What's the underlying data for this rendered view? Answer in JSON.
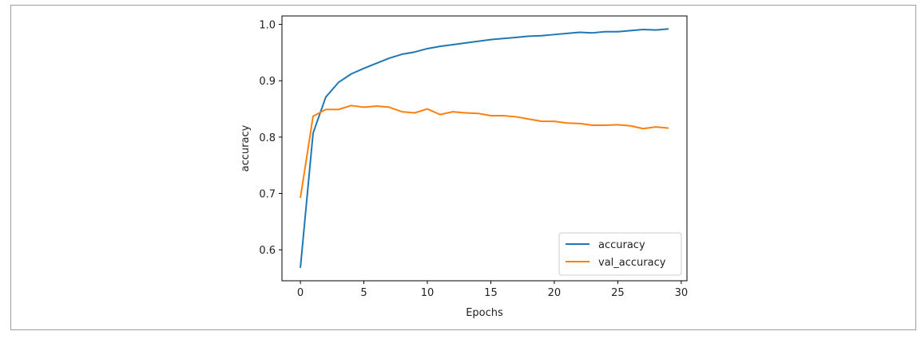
{
  "chart_data": {
    "type": "line",
    "title": "",
    "xlabel": "Epochs",
    "ylabel": "accuracy",
    "xlim": [
      -1.45,
      30.45
    ],
    "ylim": [
      0.545,
      1.015
    ],
    "xticks": [
      0,
      5,
      10,
      15,
      20,
      25,
      30
    ],
    "xtick_labels": [
      "0",
      "5",
      "10",
      "15",
      "20",
      "25",
      "30"
    ],
    "yticks": [
      0.6,
      0.7,
      0.8,
      0.9,
      1.0
    ],
    "ytick_labels": [
      "0.6",
      "0.7",
      "0.8",
      "0.9",
      "1.0"
    ],
    "grid": false,
    "legend_position": "lower-right",
    "x": [
      0,
      1,
      2,
      3,
      4,
      5,
      6,
      7,
      8,
      9,
      10,
      11,
      12,
      13,
      14,
      15,
      16,
      17,
      18,
      19,
      20,
      21,
      22,
      23,
      24,
      25,
      26,
      27,
      28,
      29
    ],
    "series": [
      {
        "name": "accuracy",
        "color": "#1f77b4",
        "values": [
          0.568,
          0.807,
          0.871,
          0.897,
          0.912,
          0.922,
          0.931,
          0.94,
          0.947,
          0.951,
          0.957,
          0.961,
          0.964,
          0.967,
          0.97,
          0.973,
          0.975,
          0.977,
          0.979,
          0.98,
          0.982,
          0.984,
          0.986,
          0.985,
          0.987,
          0.987,
          0.989,
          0.991,
          0.99,
          0.992
        ]
      },
      {
        "name": "val_accuracy",
        "color": "#ff7f0e",
        "values": [
          0.692,
          0.837,
          0.849,
          0.849,
          0.856,
          0.853,
          0.855,
          0.853,
          0.845,
          0.843,
          0.85,
          0.84,
          0.845,
          0.843,
          0.842,
          0.838,
          0.838,
          0.836,
          0.832,
          0.828,
          0.828,
          0.825,
          0.824,
          0.821,
          0.821,
          0.822,
          0.82,
          0.815,
          0.818,
          0.816
        ]
      }
    ]
  }
}
